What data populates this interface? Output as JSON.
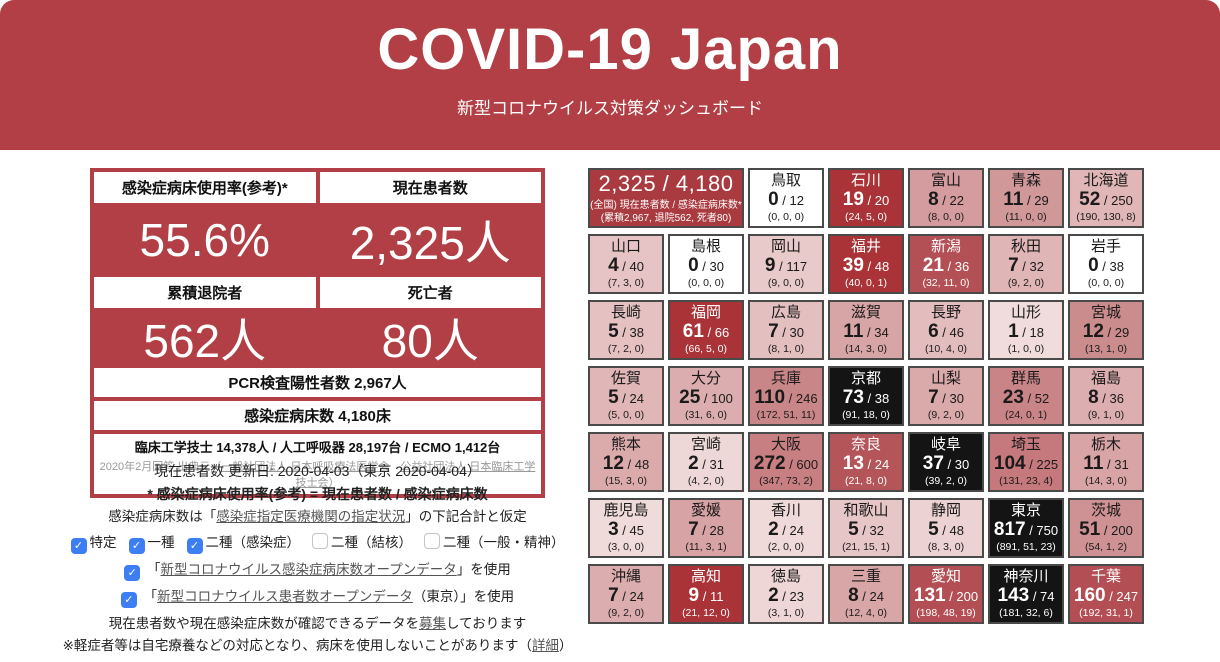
{
  "colors": {
    "header_bg": "#b13f45",
    "dark_cell_bg": "#a93337",
    "over_capacity_bg": "#141414",
    "checkbox_blue": "#3d7ef5",
    "link_gray": "#555555"
  },
  "header": {
    "title": "COVID-19 Japan",
    "subtitle": "新型コロナウイルス対策ダッシュボード"
  },
  "stats": {
    "cards": [
      {
        "label": "感染症病床使用率(参考)*",
        "value": "55.6%"
      },
      {
        "label": "現在患者数",
        "value": "2,325人"
      },
      {
        "label": "累積退院者",
        "value": "562人"
      },
      {
        "label": "死亡者",
        "value": "80人"
      }
    ],
    "pcr_bar": "PCR検査陽性者数 2,967人",
    "beds_bar": "感染症病床数 4,180床",
    "equipment": "臨床工学技士 14,378人 / 人工呼吸器 28,197台 / ECMO 1,412台",
    "source_prefix": "2020年2月回答 出典元（",
    "source_link1": "一般社団法人 日本呼吸療法医学会",
    "source_sep": "　",
    "source_link2": "公益社団法人 日本臨床工学技士会",
    "source_suffix": "）"
  },
  "notes": {
    "updated": "現在患者数 更新日: 2020-04-03（東京 2020-04-04）",
    "formula": "* 感染症病床使用率(参考) = 現在患者数 / 感染症病床数",
    "beds_prefix": "感染症病床数は「",
    "beds_link": "感染症指定医療機関の指定状況",
    "beds_suffix": "」の下記合計と仮定",
    "bed_types": [
      {
        "label": "特定",
        "checked": true
      },
      {
        "label": "一種",
        "checked": true
      },
      {
        "label": "二種（感染症）",
        "checked": true
      },
      {
        "label": "二種（結核）",
        "checked": false
      },
      {
        "label": "二種（一般・精神）",
        "checked": false
      }
    ],
    "open1_prefix": "「",
    "open1_link": "新型コロナウイルス感染症病床数オープンデータ",
    "open1_suffix": "」を使用",
    "open2_prefix": "「",
    "open2_link": "新型コロナウイルス患者数オープンデータ",
    "open2_suffix": "（東京）」を使用",
    "recruit_prefix": "現在患者数や現在感染症床数が確認できるデータを",
    "recruit_link": "募集",
    "recruit_suffix": "しております",
    "mild_prefix": "※軽症者等は自宅療養などの対応となり、病床を使用しないことがあります（",
    "mild_link": "詳細",
    "mild_suffix": "）"
  },
  "grid": {
    "summary": {
      "value": "2,325 / 4,180",
      "caption": "(全国) 現在患者数 / 感染症病床数*",
      "totals": "(累積2,967, 退院562, 死者80)",
      "bg": "#a93b40",
      "fg": "#ffffff"
    },
    "cells": [
      {
        "name": "鳥取",
        "current": "0",
        "beds": "12",
        "detail": "(0, 0, 0)",
        "bg": "#ffffff",
        "fg": "#1a1a1a"
      },
      {
        "name": "石川",
        "current": "19",
        "beds": "20",
        "detail": "(24, 5, 0)",
        "bg": "#a93337",
        "fg": "#ffffff"
      },
      {
        "name": "富山",
        "current": "8",
        "beds": "22",
        "detail": "(8, 0, 0)",
        "bg": "#d49c9e",
        "fg": "#1a1a1a"
      },
      {
        "name": "青森",
        "current": "11",
        "beds": "29",
        "detail": "(11, 0, 0)",
        "bg": "#d1989a",
        "fg": "#1a1a1a"
      },
      {
        "name": "北海道",
        "current": "52",
        "beds": "250",
        "detail": "(190, 130, 8)",
        "bg": "#e0b6b7",
        "fg": "#1a1a1a"
      },
      {
        "name": "山口",
        "current": "4",
        "beds": "40",
        "detail": "(7, 3, 0)",
        "bg": "#e6c4c5",
        "fg": "#1a1a1a"
      },
      {
        "name": "島根",
        "current": "0",
        "beds": "30",
        "detail": "(0, 0, 0)",
        "bg": "#ffffff",
        "fg": "#1a1a1a"
      },
      {
        "name": "岡山",
        "current": "9",
        "beds": "117",
        "detail": "(9, 0, 0)",
        "bg": "#e9caca",
        "fg": "#1a1a1a"
      },
      {
        "name": "福井",
        "current": "39",
        "beds": "48",
        "detail": "(40, 0, 1)",
        "bg": "#a93337",
        "fg": "#ffffff"
      },
      {
        "name": "新潟",
        "current": "21",
        "beds": "36",
        "detail": "(32, 11, 0)",
        "bg": "#b35055",
        "fg": "#ffffff"
      },
      {
        "name": "秋田",
        "current": "7",
        "beds": "32",
        "detail": "(9, 2, 0)",
        "bg": "#e0b5b6",
        "fg": "#1a1a1a"
      },
      {
        "name": "岩手",
        "current": "0",
        "beds": "38",
        "detail": "(0, 0, 0)",
        "bg": "#ffffff",
        "fg": "#1a1a1a"
      },
      {
        "name": "長崎",
        "current": "5",
        "beds": "38",
        "detail": "(7, 2, 0)",
        "bg": "#e5c1c2",
        "fg": "#1a1a1a"
      },
      {
        "name": "福岡",
        "current": "61",
        "beds": "66",
        "detail": "(66, 5, 0)",
        "bg": "#a93337",
        "fg": "#ffffff"
      },
      {
        "name": "広島",
        "current": "7",
        "beds": "30",
        "detail": "(8, 1, 0)",
        "bg": "#e4bfc0",
        "fg": "#1a1a1a"
      },
      {
        "name": "滋賀",
        "current": "11",
        "beds": "34",
        "detail": "(14, 3, 0)",
        "bg": "#d8a5a6",
        "fg": "#1a1a1a"
      },
      {
        "name": "長野",
        "current": "6",
        "beds": "46",
        "detail": "(10, 4, 0)",
        "bg": "#e3bdbe",
        "fg": "#1a1a1a"
      },
      {
        "name": "山形",
        "current": "1",
        "beds": "18",
        "detail": "(1, 0, 0)",
        "bg": "#f0dcdc",
        "fg": "#1a1a1a"
      },
      {
        "name": "宮城",
        "current": "12",
        "beds": "29",
        "detail": "(13, 1, 0)",
        "bg": "#cb8c8e",
        "fg": "#1a1a1a"
      },
      {
        "name": "佐賀",
        "current": "5",
        "beds": "24",
        "detail": "(5, 0, 0)",
        "bg": "#e0b6b7",
        "fg": "#1a1a1a"
      },
      {
        "name": "大分",
        "current": "25",
        "beds": "100",
        "detail": "(31, 6, 0)",
        "bg": "#dcadae",
        "fg": "#1a1a1a"
      },
      {
        "name": "兵庫",
        "current": "110",
        "beds": "246",
        "detail": "(172, 51, 11)",
        "bg": "#c98688",
        "fg": "#1a1a1a"
      },
      {
        "name": "京都",
        "current": "73",
        "beds": "38",
        "detail": "(91, 18, 0)",
        "bg": "#141414",
        "fg": "#ffffff"
      },
      {
        "name": "山梨",
        "current": "7",
        "beds": "30",
        "detail": "(9, 2, 0)",
        "bg": "#daa9aa",
        "fg": "#1a1a1a"
      },
      {
        "name": "群馬",
        "current": "23",
        "beds": "52",
        "detail": "(24, 0, 1)",
        "bg": "#c98487",
        "fg": "#1a1a1a"
      },
      {
        "name": "福島",
        "current": "8",
        "beds": "36",
        "detail": "(9, 1, 0)",
        "bg": "#dcaeaf",
        "fg": "#1a1a1a"
      },
      {
        "name": "熊本",
        "current": "12",
        "beds": "48",
        "detail": "(15, 3, 0)",
        "bg": "#dbabac",
        "fg": "#1a1a1a"
      },
      {
        "name": "宮崎",
        "current": "2",
        "beds": "31",
        "detail": "(4, 2, 0)",
        "bg": "#eed7d7",
        "fg": "#1a1a1a"
      },
      {
        "name": "大阪",
        "current": "272",
        "beds": "600",
        "detail": "(347, 73, 2)",
        "bg": "#c87f82",
        "fg": "#1a1a1a"
      },
      {
        "name": "奈良",
        "current": "13",
        "beds": "24",
        "detail": "(21, 8, 0)",
        "bg": "#b4555a",
        "fg": "#ffffff"
      },
      {
        "name": "岐阜",
        "current": "37",
        "beds": "30",
        "detail": "(39, 2, 0)",
        "bg": "#141414",
        "fg": "#ffffff"
      },
      {
        "name": "埼玉",
        "current": "104",
        "beds": "225",
        "detail": "(131, 23, 4)",
        "bg": "#c6797c",
        "fg": "#1a1a1a"
      },
      {
        "name": "栃木",
        "current": "11",
        "beds": "31",
        "detail": "(14, 3, 0)",
        "bg": "#d8a4a5",
        "fg": "#1a1a1a"
      },
      {
        "name": "鹿児島",
        "current": "3",
        "beds": "45",
        "detail": "(3, 0, 0)",
        "bg": "#f0dbdb",
        "fg": "#1a1a1a"
      },
      {
        "name": "愛媛",
        "current": "7",
        "beds": "28",
        "detail": "(11, 3, 1)",
        "bg": "#d8a3a5",
        "fg": "#1a1a1a"
      },
      {
        "name": "香川",
        "current": "2",
        "beds": "24",
        "detail": "(2, 0, 0)",
        "bg": "#efd9d9",
        "fg": "#1a1a1a"
      },
      {
        "name": "和歌山",
        "current": "5",
        "beds": "32",
        "detail": "(21, 15, 1)",
        "bg": "#e7c6c7",
        "fg": "#1a1a1a"
      },
      {
        "name": "静岡",
        "current": "5",
        "beds": "48",
        "detail": "(8, 3, 0)",
        "bg": "#ecd2d2",
        "fg": "#1a1a1a"
      },
      {
        "name": "東京",
        "current": "817",
        "beds": "750",
        "detail": "(891, 51, 23)",
        "bg": "#141414",
        "fg": "#ffffff"
      },
      {
        "name": "茨城",
        "current": "51",
        "beds": "200",
        "detail": "(54, 1, 2)",
        "bg": "#ce9294",
        "fg": "#1a1a1a"
      },
      {
        "name": "沖縄",
        "current": "7",
        "beds": "24",
        "detail": "(9, 2, 0)",
        "bg": "#dcadae",
        "fg": "#1a1a1a"
      },
      {
        "name": "高知",
        "current": "9",
        "beds": "11",
        "detail": "(21, 12, 0)",
        "bg": "#a93337",
        "fg": "#ffffff"
      },
      {
        "name": "徳島",
        "current": "2",
        "beds": "23",
        "detail": "(3, 1, 0)",
        "bg": "#eed6d6",
        "fg": "#1a1a1a"
      },
      {
        "name": "三重",
        "current": "8",
        "beds": "24",
        "detail": "(12, 4, 0)",
        "bg": "#d9a6a7",
        "fg": "#1a1a1a"
      },
      {
        "name": "愛知",
        "current": "131",
        "beds": "200",
        "detail": "(198, 48, 19)",
        "bg": "#b34f54",
        "fg": "#ffffff"
      },
      {
        "name": "神奈川",
        "current": "143",
        "beds": "74",
        "detail": "(181, 32, 6)",
        "bg": "#141414",
        "fg": "#ffffff"
      },
      {
        "name": "千葉",
        "current": "160",
        "beds": "247",
        "detail": "(192, 31, 1)",
        "bg": "#b34f54",
        "fg": "#ffffff"
      }
    ]
  }
}
